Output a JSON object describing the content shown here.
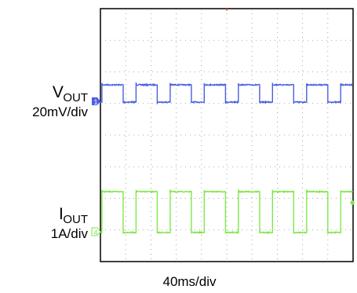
{
  "chart_data": {
    "type": "line",
    "grid": true,
    "grid_divisions": {
      "x": 10,
      "y": 8
    },
    "time_per_div": "40ms/div",
    "time_range_ms": [
      0,
      400
    ],
    "series": [
      {
        "name": "V_OUT",
        "label_main": "V",
        "label_sub": "OUT",
        "scale": "20mV/div",
        "channel_marker": "1",
        "color": "#4a5fe0",
        "units": "mV",
        "low": 0,
        "high": 16,
        "period_ms": 54,
        "duty_high": 0.62,
        "first_rise_ms": 2
      },
      {
        "name": "I_OUT",
        "label_main": "I",
        "label_sub": "OUT",
        "scale": "1A/div",
        "channel_marker": "4",
        "color": "#7ee84a",
        "units": "A",
        "low": 0,
        "high": 1.8,
        "period_ms": 54,
        "duty_high": 0.62,
        "first_rise_ms": 2
      }
    ]
  }
}
